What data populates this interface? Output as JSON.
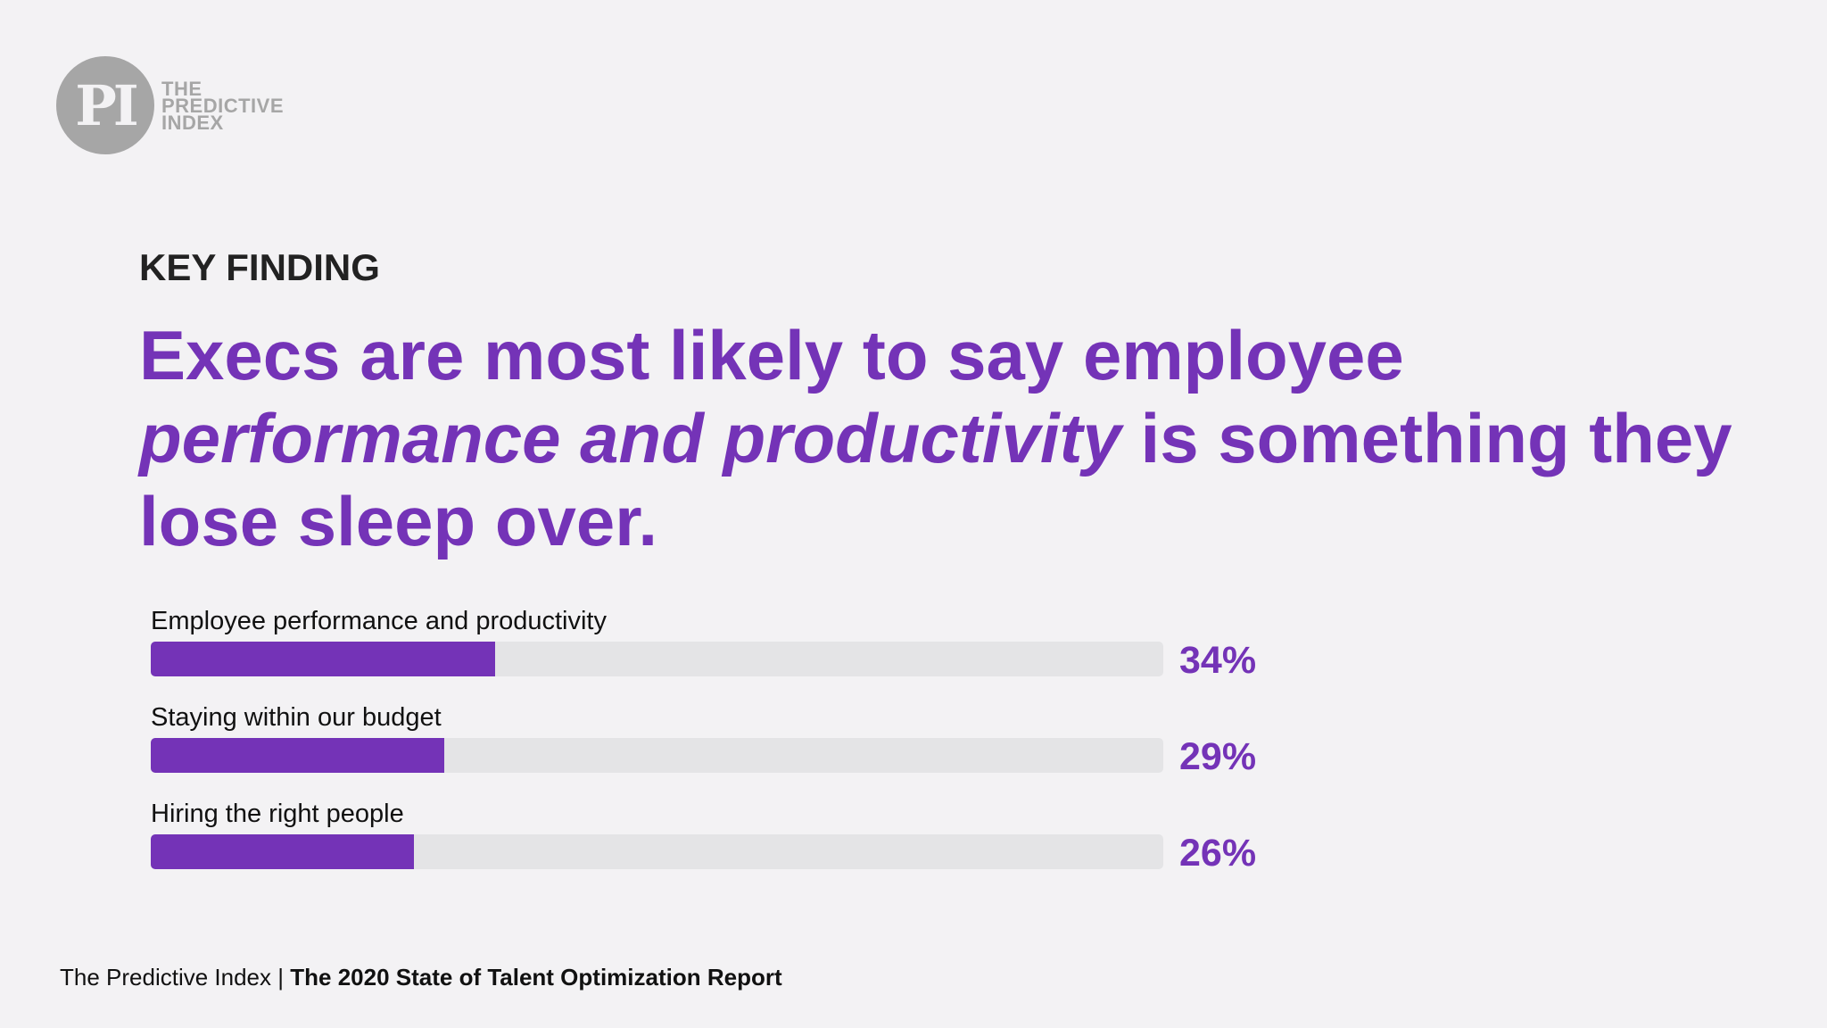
{
  "brand": {
    "logo_mark": "PI",
    "logo_words": [
      "THE",
      "PREDICTIVE",
      "INDEX"
    ],
    "accent_color": "#7433b7",
    "logo_color": "#a6a6a6"
  },
  "kicker": "KEY FINDING",
  "headline": {
    "part1": "Execs are most likely to say employee ",
    "emphasis": "performance and productivity",
    "part2": " is something they lose sleep over."
  },
  "chart_data": {
    "type": "bar",
    "orientation": "horizontal",
    "categories": [
      "Employee performance and productivity",
      "Staying within our budget",
      "Hiring the right people"
    ],
    "values": [
      34,
      29,
      26
    ],
    "value_labels": [
      "34%",
      "29%",
      "26%"
    ],
    "xlim": [
      0,
      100
    ],
    "bar_color": "#7433b7",
    "track_color": "#e4e4e6"
  },
  "footer": {
    "source": "The Predictive Index",
    "separator": "|",
    "report": "The 2020 State of Talent Optimization Report"
  }
}
